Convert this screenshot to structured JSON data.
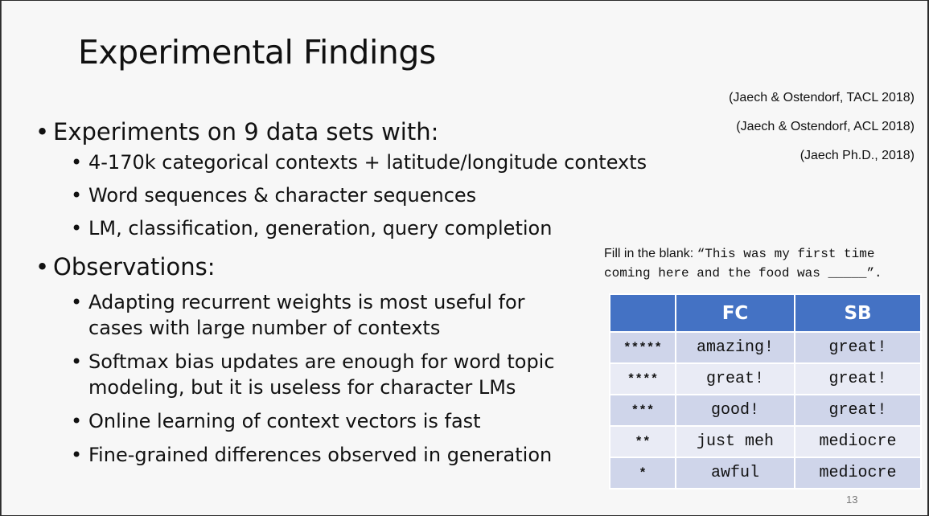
{
  "slide": {
    "title": "Experimental Findings",
    "references": [
      "(Jaech & Ostendorf, TACL 2018)",
      "(Jaech & Ostendorf, ACL 2018)",
      "(Jaech Ph.D., 2018)"
    ],
    "bullets": {
      "experiments": "Experiments on 9 data sets with:",
      "exp_items": [
        "4-170k categorical contexts + latitude/longitude contexts",
        "Word sequences & character sequences",
        "LM, classification, generation, query completion"
      ],
      "observations": "Observations:",
      "obs_items": [
        [
          "Adapting recurrent weights is most useful for",
          "cases with large number of contexts"
        ],
        [
          "Softmax bias updates are enough for word topic",
          "modeling, but it is useless for character LMs"
        ],
        [
          "Online learning of context vectors is fast"
        ],
        [
          "Fine-grained differences observed in generation"
        ]
      ]
    },
    "fill_blank": {
      "label": "Fill in the blank: ",
      "line1": "“This was my first time",
      "line2": "coming here and the food was _____”."
    },
    "table": {
      "headers": [
        "",
        "FC",
        "SB"
      ],
      "rows": [
        [
          "*****",
          "amazing!",
          "great!"
        ],
        [
          "****",
          "great!",
          "great!"
        ],
        [
          "***",
          "good!",
          "great!"
        ],
        [
          "**",
          "just meh",
          "mediocre"
        ],
        [
          "*",
          "awful",
          "mediocre"
        ]
      ]
    },
    "page_number": "13"
  }
}
